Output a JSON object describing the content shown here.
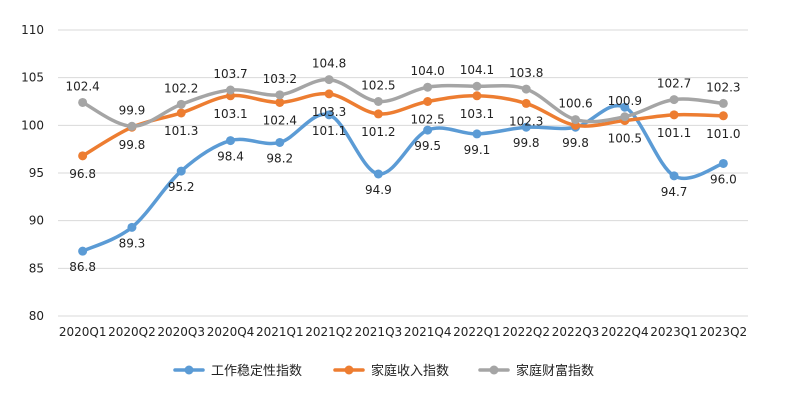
{
  "chart_data": {
    "type": "line",
    "title": "",
    "xlabel": "",
    "ylabel": "",
    "categories": [
      "2020Q1",
      "2020Q2",
      "2020Q3",
      "2020Q4",
      "2021Q1",
      "2021Q2",
      "2021Q3",
      "2021Q4",
      "2022Q1",
      "2022Q2",
      "2022Q3",
      "2022Q4",
      "2023Q1",
      "2023Q2"
    ],
    "ylim": [
      80,
      110
    ],
    "yticks": [
      80,
      85,
      90,
      95,
      100,
      105,
      110
    ],
    "grid": true,
    "legend": "bottom",
    "series": [
      {
        "name": "工作稳定性指数",
        "color": "#5b9bd5",
        "values": [
          86.8,
          89.3,
          95.2,
          98.4,
          98.2,
          101.1,
          94.9,
          99.5,
          99.1,
          99.8,
          99.8,
          101.9,
          94.7,
          96.0
        ],
        "labels": [
          "86.8",
          "89.3",
          "95.2",
          "98.4",
          "98.2",
          "101.1",
          "94.9",
          "99.5",
          "99.1",
          "99.8",
          "99.8",
          "",
          "94.7",
          "96.0"
        ]
      },
      {
        "name": "家庭收入指数",
        "color": "#ed7d31",
        "values": [
          96.8,
          99.8,
          101.3,
          103.1,
          102.4,
          103.3,
          101.2,
          102.5,
          103.1,
          102.3,
          100.0,
          100.5,
          101.1,
          101.0
        ],
        "labels": [
          "96.8",
          "99.8",
          "101.3",
          "103.1",
          "102.4",
          "103.3",
          "101.2",
          "102.5",
          "103.1",
          "102.3",
          "",
          "100.5",
          "101.1",
          "101.0"
        ]
      },
      {
        "name": "家庭财富指数",
        "color": "#a5a5a5",
        "values": [
          102.4,
          99.9,
          102.2,
          103.7,
          103.2,
          104.8,
          102.5,
          104.0,
          104.1,
          103.8,
          100.6,
          100.9,
          102.7,
          102.3
        ],
        "labels": [
          "102.4",
          "99.9",
          "102.2",
          "103.7",
          "103.2",
          "104.8",
          "102.5",
          "104.0",
          "104.1",
          "103.8",
          "100.6",
          "100.9",
          "102.7",
          "102.3"
        ]
      }
    ]
  }
}
